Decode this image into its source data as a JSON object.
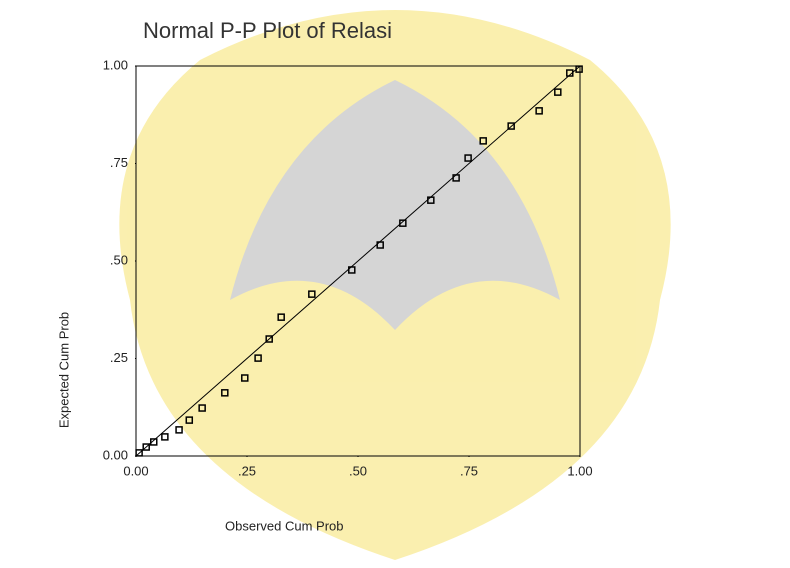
{
  "chart_data": {
    "type": "scatter",
    "title": "Normal P-P Plot of Relasi",
    "x_label": "Observed Cum Prob",
    "y_label": "Expected Cum Prob",
    "x": [
      0.007,
      0.023,
      0.04,
      0.065,
      0.097,
      0.12,
      0.149,
      0.2,
      0.245,
      0.275,
      0.3,
      0.327,
      0.396,
      0.486,
      0.55,
      0.601,
      0.664,
      0.721,
      0.748,
      0.782,
      0.845,
      0.908,
      0.95,
      0.977,
      0.998
    ],
    "values": [
      0.008,
      0.023,
      0.036,
      0.049,
      0.067,
      0.092,
      0.123,
      0.162,
      0.2,
      0.251,
      0.3,
      0.356,
      0.415,
      0.477,
      0.541,
      0.597,
      0.656,
      0.713,
      0.764,
      0.808,
      0.846,
      0.885,
      0.933,
      0.982,
      0.992
    ],
    "color": "#000000",
    "xlim": [
      0,
      1
    ],
    "ylim": [
      0,
      1
    ],
    "xticks": [
      {
        "value": 0,
        "label": "0.00"
      },
      {
        "value": 0.25,
        "label": ".25"
      },
      {
        "value": 0.5,
        "label": ".50"
      },
      {
        "value": 0.75,
        "label": ".75"
      },
      {
        "value": 1,
        "label": "1.00"
      }
    ],
    "yticks": [
      {
        "value": 0,
        "label": "0.00"
      },
      {
        "value": 0.25,
        "label": ".25"
      },
      {
        "value": 0.5,
        "label": ".50"
      },
      {
        "value": 0.75,
        "label": ".75"
      },
      {
        "value": 1,
        "label": "1.00"
      }
    ],
    "reference_line": true
  }
}
